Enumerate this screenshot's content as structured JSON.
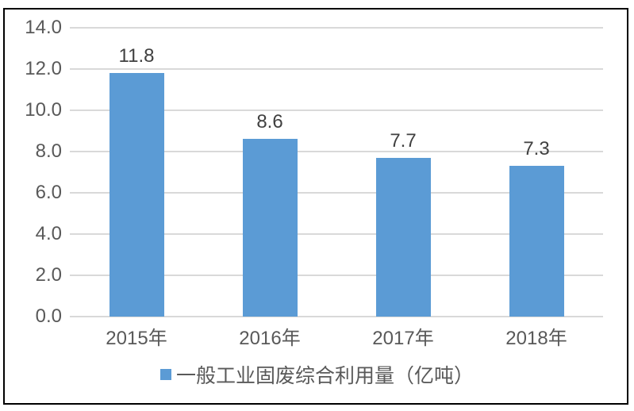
{
  "chart_data": {
    "type": "bar",
    "title": "",
    "xlabel": "",
    "ylabel": "",
    "categories": [
      "2015年",
      "2016年",
      "2017年",
      "2018年"
    ],
    "values": [
      11.8,
      8.6,
      7.7,
      7.3
    ],
    "data_labels": [
      "11.8",
      "8.6",
      "7.7",
      "7.3"
    ],
    "yticks": [
      "0.0",
      "2.0",
      "4.0",
      "6.0",
      "8.0",
      "10.0",
      "12.0",
      "14.0"
    ],
    "ylim": [
      0,
      14
    ],
    "ytick_step": 2,
    "grid": true,
    "legend": {
      "position": "bottom",
      "label": "一般工业固废综合利用量（亿吨）"
    },
    "colors": {
      "bar": "#5b9bd5",
      "gridline": "#d9d9d9",
      "axis_text": "#595959",
      "data_label_text": "#404040",
      "frame_border": "#000000",
      "background": "#ffffff"
    }
  }
}
